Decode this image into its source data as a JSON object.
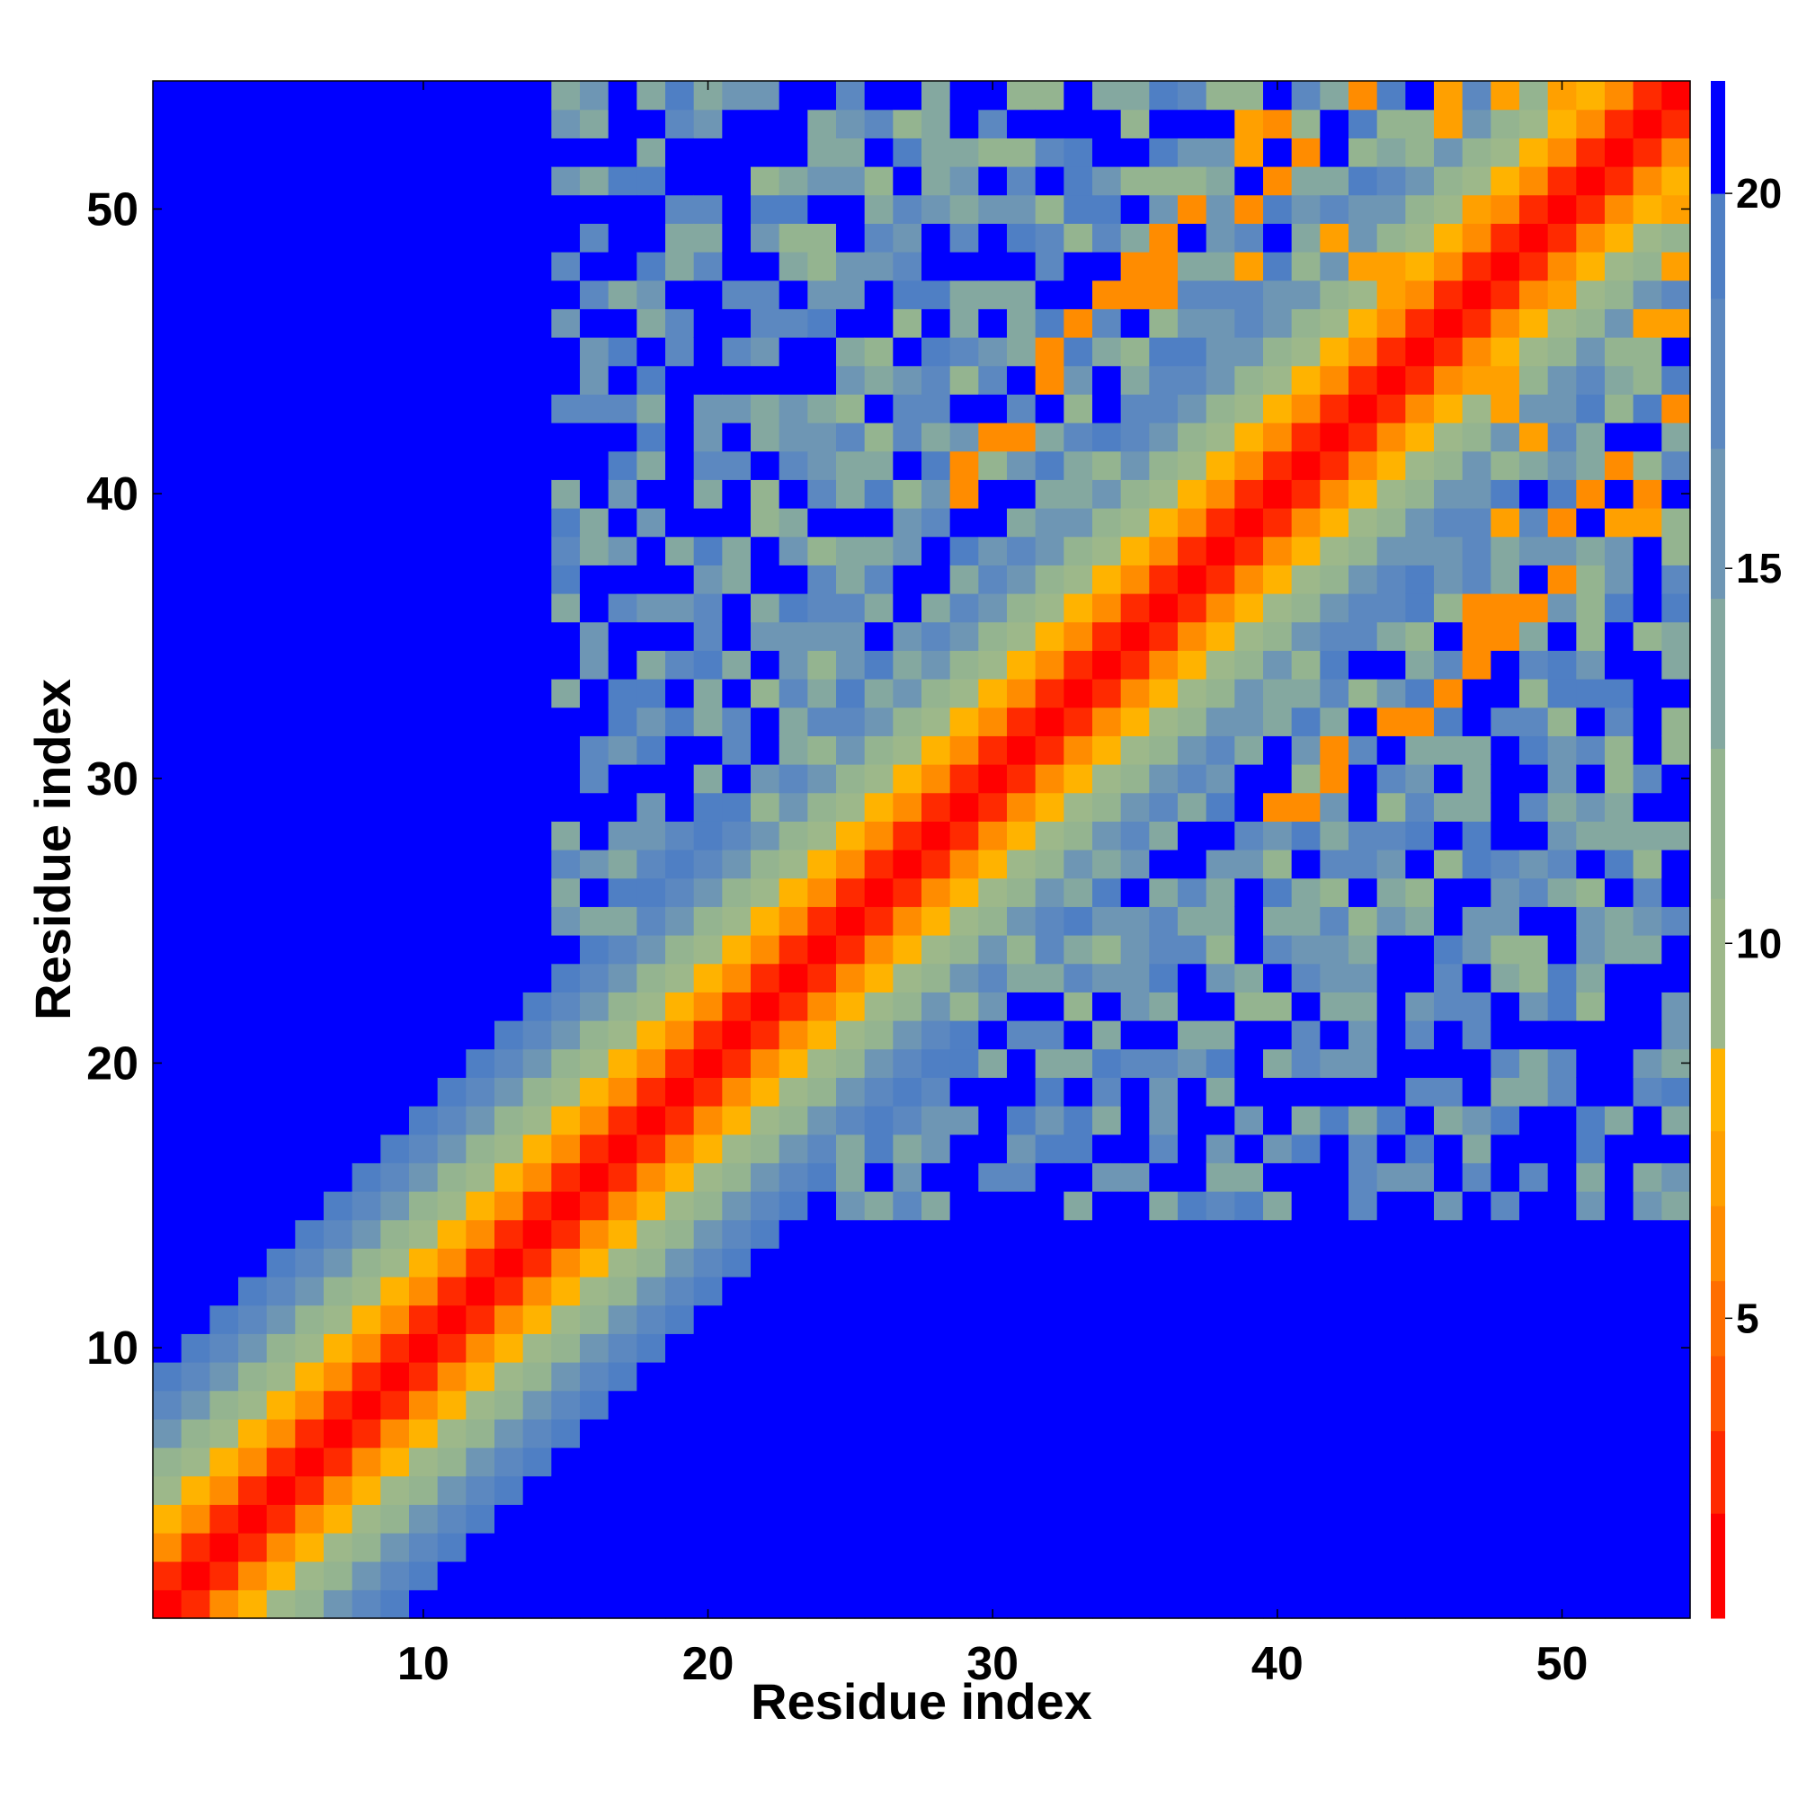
{
  "chart_data": {
    "type": "heatmap",
    "title": "",
    "xlabel": "Residue index",
    "ylabel": "Residue index",
    "n": 54,
    "xlim": [
      0.5,
      54.5
    ],
    "ylim": [
      0.5,
      54.5
    ],
    "x_ticks": [
      10,
      20,
      30,
      40,
      50
    ],
    "y_ticks": [
      10,
      20,
      30,
      40,
      50
    ],
    "colorbar": {
      "range": [
        1,
        21.5
      ],
      "ticks": [
        5,
        10,
        15,
        20
      ],
      "levels": [
        {
          "max": 2.4,
          "color": "#ff0000"
        },
        {
          "max": 3.5,
          "color": "#ff2a00"
        },
        {
          "max": 4.5,
          "color": "#ff5500"
        },
        {
          "max": 5.5,
          "color": "#ff6e00"
        },
        {
          "max": 6.5,
          "color": "#ff8c00"
        },
        {
          "max": 7.5,
          "color": "#ffa000"
        },
        {
          "max": 8.6,
          "color": "#ffb300"
        },
        {
          "max": 10.6,
          "color": "#9db88a"
        },
        {
          "max": 12.6,
          "color": "#94b490"
        },
        {
          "max": 14.6,
          "color": "#84a8a0"
        },
        {
          "max": 16.6,
          "color": "#6e96b4"
        },
        {
          "max": 18.6,
          "color": "#5c88c0"
        },
        {
          "max": 20.0,
          "color": "#4f7fc4"
        },
        {
          "max": 21.5,
          "color": "#0000ff"
        }
      ]
    },
    "generator": {
      "description": "Residue pairwise distance map; value v(i,j) reconstructed from band structure",
      "diagonal_band": "v = 1 + 2.3*|i-j| near diagonal, saturating above 20",
      "note": "approximate values estimated from the colour map"
    }
  }
}
